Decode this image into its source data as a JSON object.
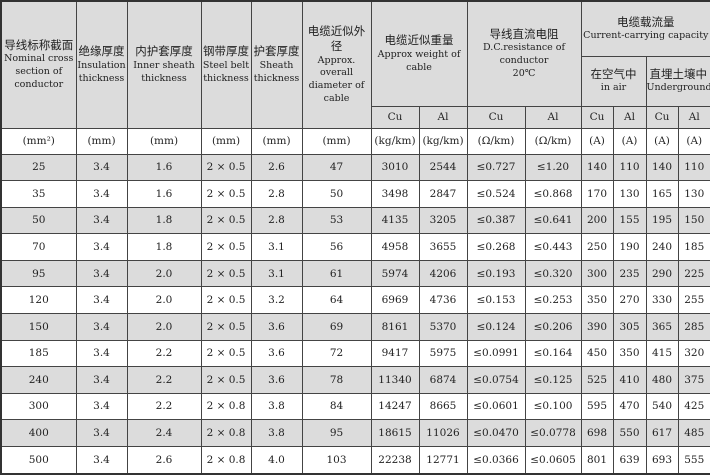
{
  "headers": {
    "conductor": {
      "zh": "导线标称截面",
      "en": "Nominal cross section of conductor"
    },
    "insulation": {
      "zh": "绝缘厚度",
      "en": "Insulation thickness"
    },
    "inner_sheath": {
      "zh": "内护套厚度",
      "en": "Inner sheath thickness"
    },
    "steel_belt": {
      "zh": "钢带厚度",
      "en": "Steel belt thickness"
    },
    "sheath": {
      "zh": "护套厚度",
      "en": "Sheath thickness"
    },
    "diameter": {
      "zh": "电缆近似外径",
      "en": "Approx. overall diameter of cable"
    },
    "weight": {
      "zh": "电缆近似重量",
      "en": "Approx weight of cable"
    },
    "resistance": {
      "zh": "导线直流电阻",
      "en": "D.C.resistance of conductor",
      "temp": "20℃"
    },
    "capacity": {
      "zh": "电缆载流量",
      "en": "Current-carrying capacity"
    },
    "in_air": {
      "zh": "在空气中",
      "en": "in air"
    },
    "underground": {
      "zh": "直埋土壤中",
      "en": "Underground"
    },
    "sub": [
      "Cu",
      "Al",
      "Cu",
      "Al",
      "Cu",
      "Al",
      "Cu",
      "Al"
    ]
  },
  "units": [
    "(mm²)",
    "(mm)",
    "(mm)",
    "(mm)",
    "(mm)",
    "(mm)",
    "(kg/km)",
    "(kg/km)",
    "(Ω/km)",
    "(Ω/km)",
    "(A)",
    "(A)",
    "(A)",
    "(A)"
  ],
  "rows": [
    [
      "25",
      "3.4",
      "1.6",
      "2 × 0.5",
      "2.6",
      "47",
      "3010",
      "2544",
      "≤0.727",
      "≤1.20",
      "140",
      "110",
      "140",
      "110"
    ],
    [
      "35",
      "3.4",
      "1.6",
      "2 × 0.5",
      "2.8",
      "50",
      "3498",
      "2847",
      "≤0.524",
      "≤0.868",
      "170",
      "130",
      "165",
      "130"
    ],
    [
      "50",
      "3.4",
      "1.8",
      "2 × 0.5",
      "2.8",
      "53",
      "4135",
      "3205",
      "≤0.387",
      "≤0.641",
      "200",
      "155",
      "195",
      "150"
    ],
    [
      "70",
      "3.4",
      "1.8",
      "2 × 0.5",
      "3.1",
      "56",
      "4958",
      "3655",
      "≤0.268",
      "≤0.443",
      "250",
      "190",
      "240",
      "185"
    ],
    [
      "95",
      "3.4",
      "2.0",
      "2 × 0.5",
      "3.1",
      "61",
      "5974",
      "4206",
      "≤0.193",
      "≤0.320",
      "300",
      "235",
      "290",
      "225"
    ],
    [
      "120",
      "3.4",
      "2.0",
      "2 × 0.5",
      "3.2",
      "64",
      "6969",
      "4736",
      "≤0.153",
      "≤0.253",
      "350",
      "270",
      "330",
      "255"
    ],
    [
      "150",
      "3.4",
      "2.0",
      "2 × 0.5",
      "3.6",
      "69",
      "8161",
      "5370",
      "≤0.124",
      "≤0.206",
      "390",
      "305",
      "365",
      "285"
    ],
    [
      "185",
      "3.4",
      "2.2",
      "2 × 0.5",
      "3.6",
      "72",
      "9417",
      "5975",
      "≤0.0991",
      "≤0.164",
      "450",
      "350",
      "415",
      "320"
    ],
    [
      "240",
      "3.4",
      "2.2",
      "2 × 0.5",
      "3.6",
      "78",
      "11340",
      "6874",
      "≤0.0754",
      "≤0.125",
      "525",
      "410",
      "480",
      "375"
    ],
    [
      "300",
      "3.4",
      "2.2",
      "2 × 0.8",
      "3.8",
      "84",
      "14247",
      "8665",
      "≤0.0601",
      "≤0.100",
      "595",
      "470",
      "540",
      "425"
    ],
    [
      "400",
      "3.4",
      "2.4",
      "2 × 0.8",
      "3.8",
      "95",
      "18615",
      "11026",
      "≤0.0470",
      "≤0.0778",
      "698",
      "550",
      "617",
      "485"
    ],
    [
      "500",
      "3.4",
      "2.6",
      "2 × 0.8",
      "4.0",
      "103",
      "22238",
      "12771",
      "≤0.0366",
      "≤0.0605",
      "801",
      "639",
      "693",
      "555"
    ]
  ]
}
